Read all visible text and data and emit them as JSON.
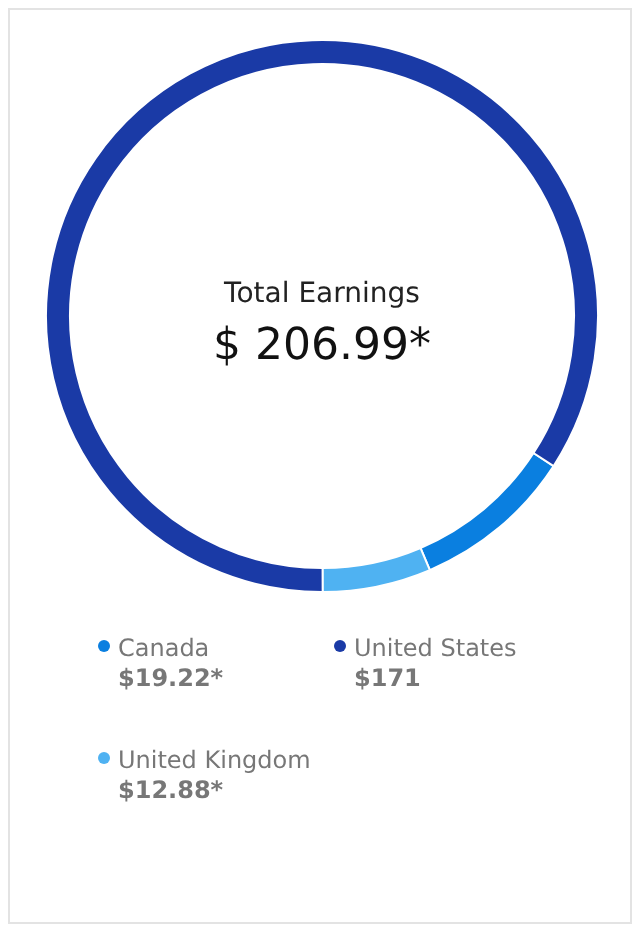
{
  "chart_data": {
    "type": "donut",
    "title": "Total Earnings",
    "subtitle": "$ 206.99*",
    "categories": [
      "Canada",
      "United States",
      "United Kingdom"
    ],
    "values": [
      19.22,
      171,
      12.88
    ],
    "value_labels": [
      "$19.22*",
      "$171",
      "$12.88*"
    ],
    "colors": [
      "#0a7fe0",
      "#1a3aa6",
      "#4fb2f2"
    ],
    "legend": "bottom"
  }
}
